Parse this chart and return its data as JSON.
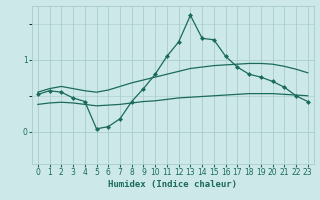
{
  "xlabel": "Humidex (Indice chaleur)",
  "bg_color": "#cde8e8",
  "line_color": "#1a6b5a",
  "grid_color": "#a8cccc",
  "xlim": [
    -0.5,
    23.5
  ],
  "ylim": [
    -0.45,
    1.75
  ],
  "yticks": [
    0,
    1
  ],
  "xticks": [
    0,
    1,
    2,
    3,
    4,
    5,
    6,
    7,
    8,
    9,
    10,
    11,
    12,
    13,
    14,
    15,
    16,
    17,
    18,
    19,
    20,
    21,
    22,
    23
  ],
  "line_smooth_x": [
    0,
    1,
    2,
    3,
    4,
    5,
    6,
    7,
    8,
    9,
    10,
    11,
    12,
    13,
    14,
    15,
    16,
    17,
    18,
    19,
    20,
    21,
    22,
    23
  ],
  "line_smooth_y": [
    0.55,
    0.6,
    0.63,
    0.6,
    0.57,
    0.55,
    0.58,
    0.63,
    0.68,
    0.72,
    0.76,
    0.8,
    0.84,
    0.88,
    0.9,
    0.92,
    0.93,
    0.94,
    0.95,
    0.95,
    0.94,
    0.91,
    0.87,
    0.82
  ],
  "line_peak_x": [
    0,
    1,
    2,
    3,
    4,
    5,
    6,
    7,
    8,
    9,
    10,
    11,
    12,
    13,
    14,
    15,
    16,
    17,
    18,
    19,
    20,
    21,
    22,
    23
  ],
  "line_peak_y": [
    0.52,
    0.57,
    0.55,
    0.47,
    0.42,
    0.04,
    0.07,
    0.18,
    0.42,
    0.6,
    0.8,
    1.05,
    1.25,
    1.62,
    1.3,
    1.28,
    1.05,
    0.9,
    0.8,
    0.76,
    0.7,
    0.62,
    0.5,
    0.42
  ],
  "line_flat_x": [
    0,
    1,
    2,
    3,
    4,
    5,
    6,
    7,
    8,
    9,
    10,
    11,
    12,
    13,
    14,
    15,
    16,
    17,
    18,
    19,
    20,
    21,
    22,
    23
  ],
  "line_flat_y": [
    0.38,
    0.4,
    0.41,
    0.4,
    0.38,
    0.36,
    0.37,
    0.38,
    0.4,
    0.42,
    0.43,
    0.45,
    0.47,
    0.48,
    0.49,
    0.5,
    0.51,
    0.52,
    0.53,
    0.53,
    0.53,
    0.52,
    0.51,
    0.5
  ],
  "marker": "D",
  "marker_size": 2.5,
  "line_width": 0.9,
  "tick_fontsize": 5.5,
  "xlabel_fontsize": 6.5
}
